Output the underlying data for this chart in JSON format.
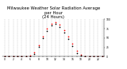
{
  "title": "Milwaukee Weather Solar Radiation Average\nper Hour\n(24 Hours)",
  "hours": [
    0,
    1,
    2,
    3,
    4,
    5,
    6,
    7,
    8,
    9,
    10,
    11,
    12,
    13,
    14,
    15,
    16,
    17,
    18,
    19,
    20,
    21,
    22,
    23
  ],
  "x_tick_labels": [
    "0",
    "",
    "2",
    "",
    "4",
    "",
    "6",
    "",
    "8",
    "",
    "10",
    "",
    "12",
    "",
    "14",
    "",
    "16",
    "",
    "18",
    "",
    "20",
    "",
    "22",
    ""
  ],
  "red_data": [
    0,
    0,
    0,
    0,
    0,
    0.5,
    3,
    12,
    30,
    55,
    75,
    88,
    92,
    85,
    72,
    55,
    35,
    15,
    4,
    1.5,
    0,
    0,
    0,
    0
  ],
  "black_data": [
    0,
    0,
    0,
    0,
    0,
    0,
    1.5,
    8,
    26,
    50,
    68,
    83,
    89,
    80,
    65,
    48,
    28,
    10,
    2,
    0,
    0,
    0,
    0,
    0
  ],
  "ylim": [
    0,
    100
  ],
  "ylabel_right_ticks": [
    0,
    25,
    50,
    75,
    100
  ],
  "ylabel_right_labels": [
    "0",
    "25",
    "50",
    "75",
    "100"
  ],
  "grid_color": "#aaaaaa",
  "red_color": "#ff0000",
  "black_color": "#000000",
  "bg_color": "#ffffff",
  "title_fontsize": 3.8,
  "marker_size": 1.2,
  "tick_fontsize": 2.2
}
